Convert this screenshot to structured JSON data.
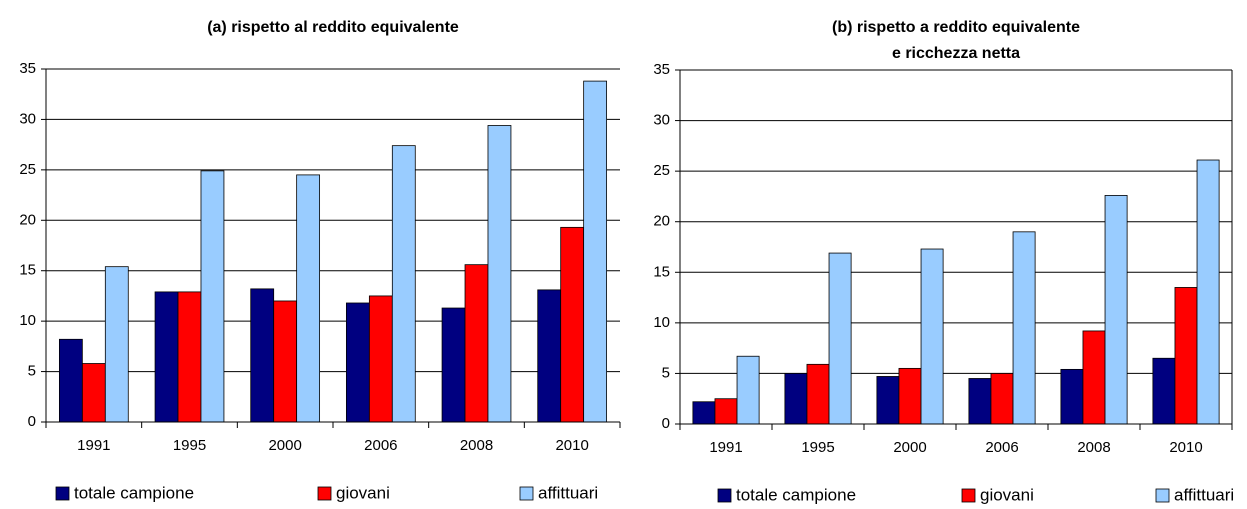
{
  "chart_data": [
    {
      "type": "bar",
      "title": [
        "(a)  rispetto al reddito equivalente"
      ],
      "categories": [
        "1991",
        "1995",
        "2000",
        "2006",
        "2008",
        "2010"
      ],
      "series": [
        {
          "name": "totale campione",
          "color": "#000080",
          "values": [
            8.2,
            12.9,
            13.2,
            11.8,
            11.3,
            13.1
          ]
        },
        {
          "name": "giovani",
          "color": "#ff0000",
          "values": [
            5.8,
            12.9,
            12.0,
            12.5,
            15.6,
            19.3
          ]
        },
        {
          "name": "affittuari",
          "color": "#99ccff",
          "values": [
            15.4,
            24.9,
            24.5,
            27.4,
            29.4,
            33.8
          ]
        }
      ],
      "ylim": [
        0,
        35
      ],
      "yticks": [
        0,
        5,
        10,
        15,
        20,
        25,
        30,
        35
      ],
      "grid": true
    },
    {
      "type": "bar",
      "title": [
        "(b) rispetto a reddito equivalente",
        "e ricchezza netta"
      ],
      "categories": [
        "1991",
        "1995",
        "2000",
        "2006",
        "2008",
        "2010"
      ],
      "series": [
        {
          "name": "totale campione",
          "color": "#000080",
          "values": [
            2.2,
            5.0,
            4.7,
            4.5,
            5.4,
            6.5
          ]
        },
        {
          "name": "giovani",
          "color": "#ff0000",
          "values": [
            2.5,
            5.9,
            5.5,
            5.0,
            9.2,
            13.5
          ]
        },
        {
          "name": "affittuari",
          "color": "#99ccff",
          "values": [
            6.7,
            16.9,
            17.3,
            19.0,
            22.6,
            26.1
          ]
        }
      ],
      "ylim": [
        0,
        35
      ],
      "yticks": [
        0,
        5,
        10,
        15,
        20,
        25,
        30,
        35
      ],
      "grid": true
    }
  ]
}
